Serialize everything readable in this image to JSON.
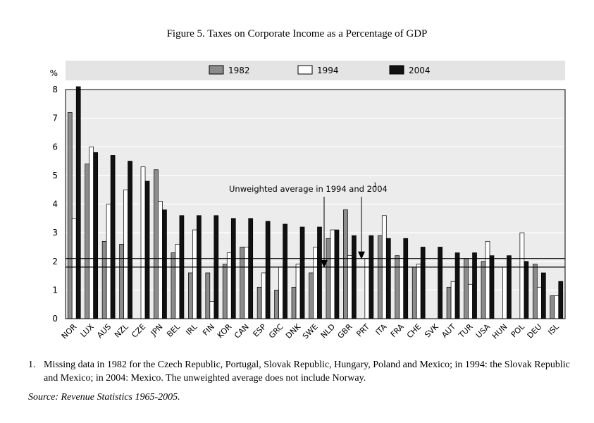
{
  "figure_title": "Figure 5. Taxes on Corporate Income as a Percentage of GDP",
  "footnote": {
    "number": "1.",
    "text": "Missing data in 1982 for the Czech Republic, Portugal, Slovak Republic, Hungary, Poland and Mexico; in 1994: the Slovak Republic and Mexico; in 2004: Mexico. The unweighted average does not include Norway."
  },
  "source": {
    "label": "Source:",
    "text": "Revenue Statistics 1965-2005."
  },
  "colors": {
    "s1982": "#8c8c8c",
    "s1994": "#ffffff",
    "s2004": "#111111",
    "legend_band": "#e4e4e4",
    "plot_bg": "#ececec"
  },
  "chart_data": {
    "type": "bar",
    "ylabel": "%",
    "ylim": [
      0,
      8
    ],
    "yticks": [
      "0",
      "1",
      "2",
      "3",
      "4",
      "5",
      "6",
      "7",
      "8"
    ],
    "grid": true,
    "legend_position": "top",
    "categories": [
      "NOR",
      "LUX",
      "AUS",
      "NZL",
      "CZE",
      "JPN",
      "BEL",
      "IRL",
      "FIN",
      "KOR",
      "CAN",
      "ESP",
      "GRC",
      "DNK",
      "SWE",
      "NLD",
      "GBR",
      "PRT",
      "ITA",
      "FRA",
      "CHE",
      "SVK",
      "AUT",
      "TUR",
      "USA",
      "HUN",
      "POL",
      "DEU",
      "ISL"
    ],
    "series": [
      {
        "name": "1982",
        "values": [
          7.2,
          5.4,
          2.7,
          2.6,
          null,
          5.2,
          2.3,
          1.6,
          1.6,
          1.9,
          2.5,
          1.1,
          1.0,
          1.1,
          1.6,
          2.8,
          3.8,
          null,
          2.9,
          2.2,
          1.8,
          null,
          1.1,
          2.1,
          2.0,
          null,
          null,
          1.9,
          0.8
        ]
      },
      {
        "name": "1994",
        "values": [
          3.5,
          6.0,
          4.0,
          4.5,
          5.3,
          4.1,
          2.6,
          3.1,
          0.6,
          2.3,
          2.5,
          1.6,
          1.8,
          1.9,
          2.5,
          3.1,
          2.2,
          2.1,
          3.6,
          2.1,
          1.9,
          null,
          1.3,
          1.2,
          2.7,
          1.8,
          3.0,
          1.1,
          0.8
        ]
      },
      {
        "name": "2004",
        "values": [
          8.1,
          5.8,
          5.7,
          5.5,
          4.8,
          3.8,
          3.6,
          3.6,
          3.6,
          3.5,
          3.5,
          3.4,
          3.3,
          3.2,
          3.2,
          3.1,
          2.9,
          2.9,
          2.8,
          2.8,
          2.5,
          2.5,
          2.3,
          2.3,
          2.2,
          2.2,
          2.0,
          1.6,
          1.3
        ]
      }
    ],
    "reference_lines": {
      "label": "Unweighted average in 1994 and 2004",
      "label_superscript": "1",
      "avg_1994": 1.8,
      "avg_2004": 2.1
    }
  }
}
